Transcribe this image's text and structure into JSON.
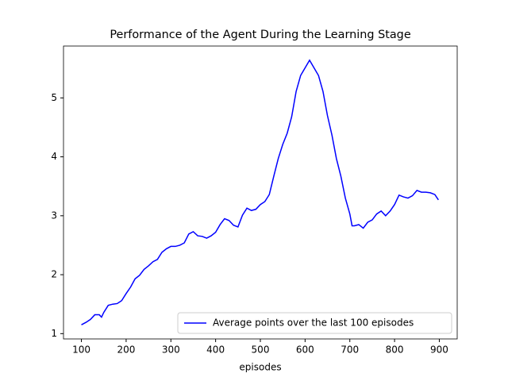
{
  "chart_data": {
    "type": "line",
    "title": "Performance of the Agent During the Learning Stage",
    "x_label": "episodes",
    "x": [
      100,
      110,
      120,
      130,
      140,
      145,
      150,
      160,
      170,
      180,
      190,
      200,
      210,
      220,
      230,
      240,
      250,
      260,
      270,
      280,
      290,
      300,
      310,
      320,
      330,
      340,
      350,
      360,
      370,
      380,
      390,
      400,
      410,
      420,
      430,
      440,
      450,
      460,
      470,
      480,
      490,
      500,
      510,
      520,
      530,
      540,
      550,
      560,
      570,
      580,
      590,
      600,
      610,
      620,
      630,
      640,
      650,
      660,
      670,
      680,
      690,
      700,
      705,
      710,
      720,
      730,
      740,
      750,
      760,
      770,
      780,
      790,
      800,
      810,
      820,
      830,
      840,
      850,
      860,
      870,
      880,
      890,
      898
    ],
    "series": [
      {
        "name": "Average points over the last 100 episodes",
        "color": "#0000ff",
        "values": [
          1.15,
          1.19,
          1.24,
          1.32,
          1.32,
          1.28,
          1.36,
          1.48,
          1.5,
          1.51,
          1.56,
          1.68,
          1.79,
          1.93,
          1.99,
          2.09,
          2.15,
          2.22,
          2.26,
          2.38,
          2.44,
          2.48,
          2.48,
          2.5,
          2.54,
          2.69,
          2.73,
          2.66,
          2.65,
          2.62,
          2.66,
          2.72,
          2.85,
          2.95,
          2.92,
          2.84,
          2.81,
          3.01,
          3.13,
          3.09,
          3.11,
          3.19,
          3.24,
          3.36,
          3.67,
          3.97,
          4.21,
          4.4,
          4.68,
          5.11,
          5.38,
          5.51,
          5.64,
          5.51,
          5.38,
          5.11,
          4.7,
          4.37,
          3.97,
          3.67,
          3.3,
          3.03,
          2.83,
          2.83,
          2.85,
          2.79,
          2.89,
          2.93,
          3.03,
          3.08,
          3,
          3.08,
          3.19,
          3.35,
          3.32,
          3.3,
          3.34,
          3.43,
          3.4,
          3.4,
          3.39,
          3.36,
          3.27
        ]
      }
    ],
    "xlim": [
      60,
      940
    ],
    "xticks": [
      100,
      200,
      300,
      400,
      500,
      600,
      700,
      800,
      900
    ],
    "ylim": [
      0.91,
      5.88
    ],
    "yticks": [
      1,
      2,
      3,
      4,
      5
    ],
    "legend": "lower right"
  }
}
